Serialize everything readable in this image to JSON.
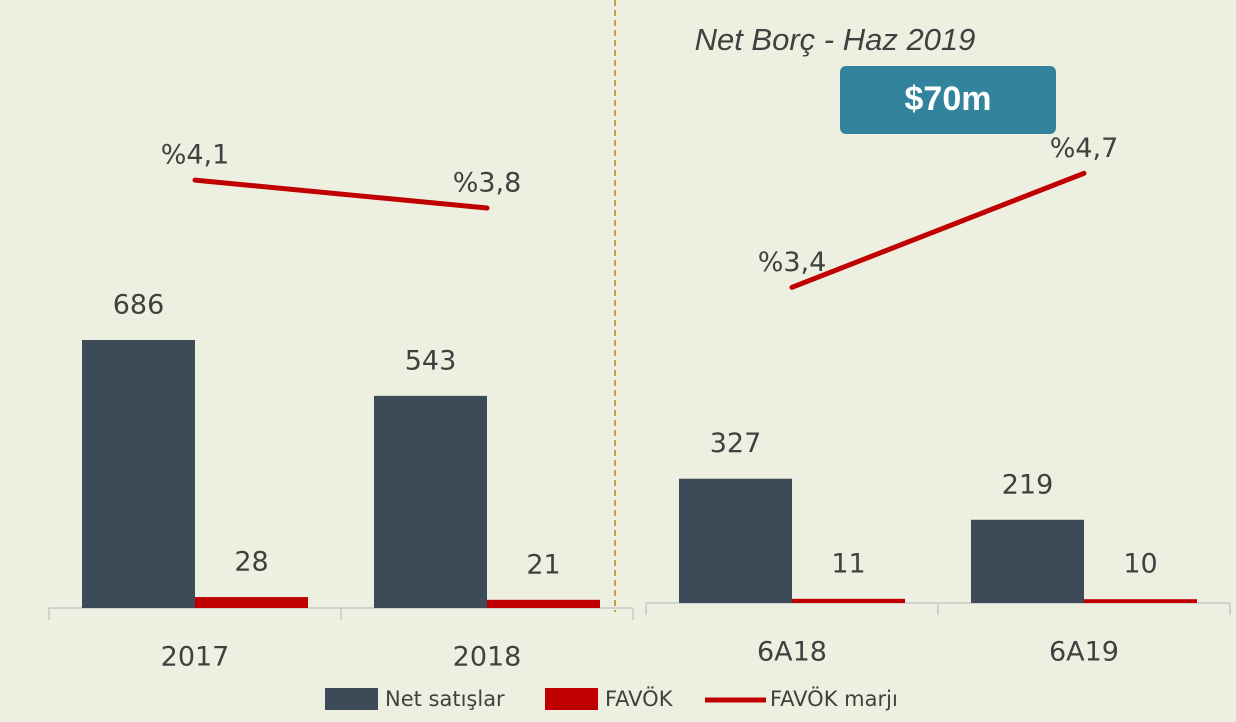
{
  "chart_data": [
    {
      "type": "bar-line",
      "categories": [
        "2017",
        "2018"
      ],
      "series": [
        {
          "name": "Net satışlar",
          "color": "#3d4a58",
          "values": [
            686,
            543
          ]
        },
        {
          "name": "FAVÖK",
          "color": "#c00000",
          "values": [
            28,
            21
          ]
        },
        {
          "name": "FAVÖK marjı",
          "color": "#c00000",
          "axis": "y2",
          "values": [
            4.1,
            3.8
          ],
          "value_labels": [
            "%4,1",
            "%3,8"
          ]
        }
      ],
      "ylim": [
        0,
        1500
      ],
      "y2lim": [
        -0.5,
        5.8
      ]
    },
    {
      "type": "bar-line",
      "categories": [
        "6A18",
        "6A19"
      ],
      "series": [
        {
          "name": "Net satışlar",
          "color": "#3d4a58",
          "values": [
            327,
            219
          ]
        },
        {
          "name": "FAVÖK",
          "color": "#c00000",
          "values": [
            11,
            10
          ]
        },
        {
          "name": "FAVÖK marjı",
          "color": "#c00000",
          "axis": "y2",
          "values": [
            3.4,
            4.7
          ],
          "value_labels": [
            "%3,4",
            "%4,7"
          ]
        }
      ],
      "ylim": [
        0,
        1500
      ],
      "y2lim": [
        -0.2,
        6.3
      ],
      "annotations": [
        "Net Borç - Haz 2019",
        "$70m"
      ]
    }
  ]
}
